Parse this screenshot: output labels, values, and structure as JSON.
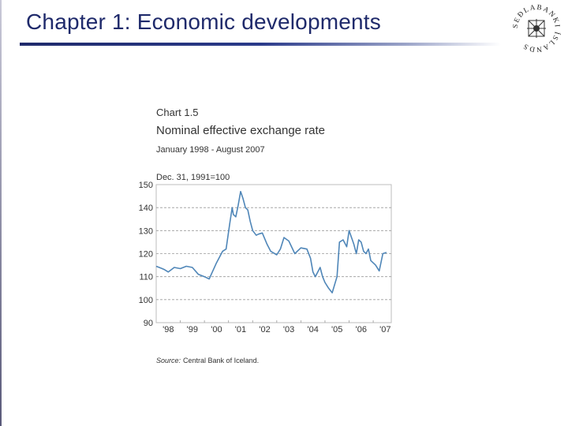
{
  "slide": {
    "title": "Chapter 1: Economic developments",
    "logo_text": "SEÐLABANKI ÍSLANDS"
  },
  "colors": {
    "title": "#1f2a6b",
    "line": "#4f86b8",
    "grid": "#9a9a9a"
  },
  "chart_data": {
    "type": "line",
    "chart_number": "Chart 1.5",
    "title": "Nominal effective exchange rate",
    "subtitle": "January 1998 - August 2007",
    "ylabel": "Dec. 31, 1991=100",
    "source_label": "Source:",
    "source_text": "Central Bank of Iceland.",
    "ylim": [
      90,
      150
    ],
    "yticks": [
      "150",
      "140",
      "130",
      "120",
      "110",
      "100",
      "90"
    ],
    "xticks": [
      "'98",
      "'99",
      "'00",
      "'01",
      "'02",
      "'03",
      "'04",
      "'05",
      "'06",
      "'07"
    ],
    "xlim": [
      1998.0,
      2007.75
    ],
    "grid": "horizontal dashed",
    "series": [
      {
        "name": "Nominal effective exchange rate",
        "x": [
          1998.0,
          1998.25,
          1998.35,
          1998.5,
          1998.75,
          1999.0,
          1999.25,
          1999.5,
          1999.75,
          2000.0,
          2000.2,
          2000.5,
          2000.75,
          2000.9,
          2001.05,
          2001.15,
          2001.2,
          2001.3,
          2001.4,
          2001.5,
          2001.6,
          2001.7,
          2001.8,
          2001.9,
          2002.0,
          2002.15,
          2002.25,
          2002.4,
          2002.6,
          2002.75,
          2003.0,
          2003.15,
          2003.3,
          2003.5,
          2003.75,
          2004.0,
          2004.25,
          2004.4,
          2004.5,
          2004.6,
          2004.8,
          2004.9,
          2005.0,
          2005.15,
          2005.3,
          2005.5,
          2005.6,
          2005.75,
          2005.9,
          2006.0,
          2006.1,
          2006.2,
          2006.3,
          2006.4,
          2006.5,
          2006.6,
          2006.7,
          2006.8,
          2006.9,
          2007.0,
          2007.1,
          2007.25,
          2007.4,
          2007.55
        ],
        "values": [
          114.5,
          113.5,
          113.0,
          112.0,
          114.0,
          113.5,
          114.5,
          114.0,
          111.0,
          110.0,
          109.0,
          116.0,
          121.0,
          122.0,
          133.0,
          140.0,
          137.0,
          136.0,
          141.0,
          147.0,
          144.0,
          140.0,
          139.0,
          134.0,
          130.0,
          128.0,
          128.5,
          129.0,
          124.0,
          121.0,
          119.5,
          122.0,
          127.0,
          125.5,
          120.0,
          122.5,
          122.0,
          118.0,
          112.0,
          110.0,
          114.0,
          110.0,
          107.5,
          105.0,
          103.0,
          110.0,
          125.0,
          126.0,
          123.0,
          130.0,
          127.0,
          124.0,
          120.0,
          126.0,
          125.0,
          121.0,
          120.0,
          122.0,
          117.0,
          116.0,
          115.0,
          112.5,
          120.0,
          120.5
        ]
      }
    ]
  }
}
